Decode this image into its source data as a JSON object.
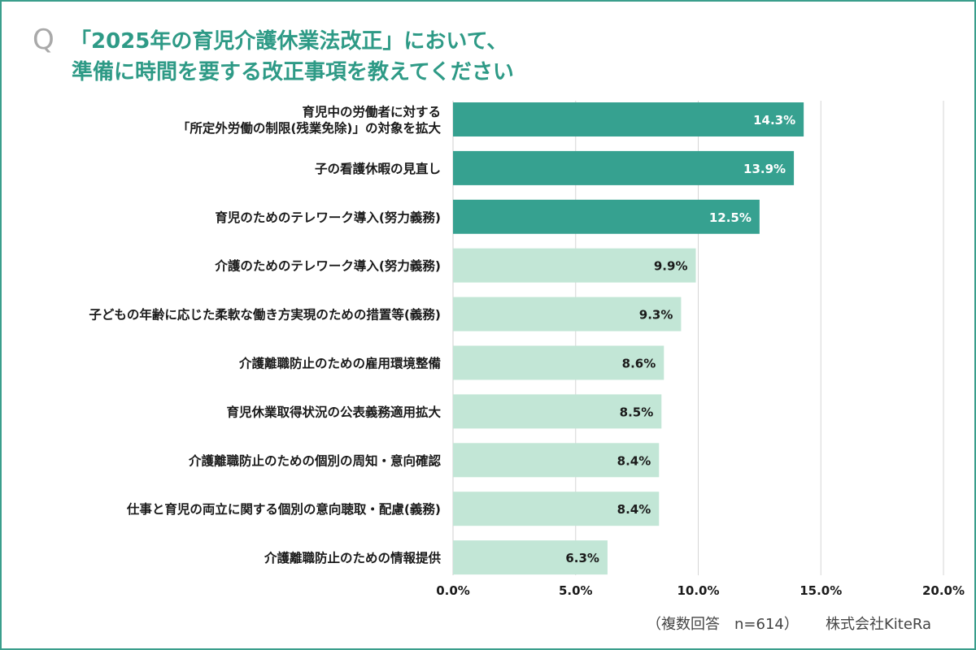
{
  "header": {
    "q_mark": "Q",
    "title_line1": "「2025年の育児介護休業法改正」において、",
    "title_line2": "準備に時間を要する改正事項を教えてください"
  },
  "footer": {
    "note": "（複数回答　n=614）",
    "company": "株式会社KiteRa"
  },
  "colors": {
    "top_bar": "#36a190",
    "other_bar": "#c2e6d6",
    "top_label": "#ffffff",
    "other_label": "#1a1a1a",
    "border": "#3a9e8c",
    "title": "#2e9a86"
  },
  "chart_data": {
    "type": "bar",
    "orientation": "horizontal",
    "title": "「2025年の育児介護休業法改正」において、準備に時間を要する改正事項を教えてください",
    "categories": [
      [
        "育児中の労働者に対する",
        "「所定外労働の制限(残業免除)」の対象を拡大"
      ],
      [
        "子の看護休暇の見直し"
      ],
      [
        "育児のためのテレワーク導入(努力義務)"
      ],
      [
        "介護のためのテレワーク導入(努力義務)"
      ],
      [
        "子どもの年齢に応じた柔軟な働き方実現のための措置等(義務)"
      ],
      [
        "介護離職防止のための雇用環境整備"
      ],
      [
        "育児休業取得状況の公表義務適用拡大"
      ],
      [
        "介護離職防止のための個別の周知・意向確認"
      ],
      [
        "仕事と育児の両立に関する個別の意向聴取・配慮(義務)"
      ],
      [
        "介護離職防止のための情報提供"
      ]
    ],
    "values": [
      14.3,
      13.9,
      12.5,
      9.9,
      9.3,
      8.6,
      8.5,
      8.4,
      8.4,
      6.3
    ],
    "value_labels": [
      "14.3%",
      "13.9%",
      "12.5%",
      "9.9%",
      "9.3%",
      "8.6%",
      "8.5%",
      "8.4%",
      "8.4%",
      "6.3%"
    ],
    "highlight_count": 3,
    "xlim": [
      0,
      20
    ],
    "ticks": [
      0,
      5,
      10,
      15,
      20
    ],
    "tick_labels": [
      "0.0%",
      "5.0%",
      "10.0%",
      "15.0%",
      "20.0%"
    ],
    "grid": true,
    "xlabel": "",
    "ylabel": ""
  }
}
